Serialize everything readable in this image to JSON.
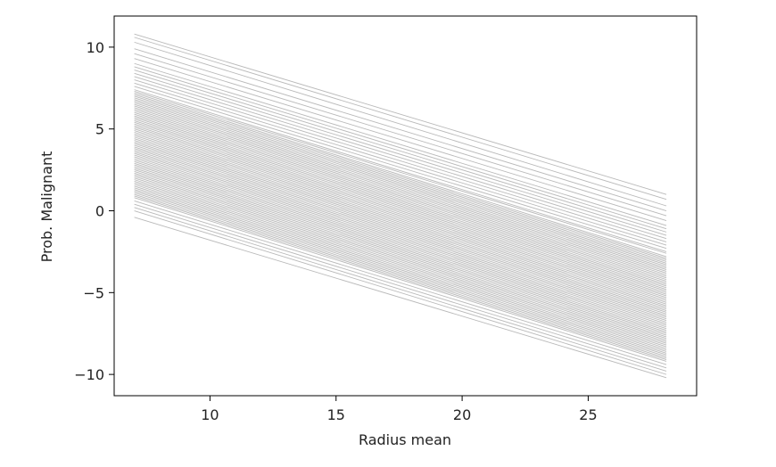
{
  "chart_data": {
    "type": "line",
    "title": "",
    "xlabel": "Radius mean",
    "ylabel": "Prob. Malignant",
    "xlim": [
      6.2,
      29.3
    ],
    "ylim": [
      -11.3,
      11.9
    ],
    "x_range": [
      7.0,
      28.1
    ],
    "x_ticks": [
      10,
      15,
      20,
      25
    ],
    "x_tick_labels": [
      "10",
      "15",
      "20",
      "25"
    ],
    "y_ticks": [
      -10,
      -5,
      0,
      5,
      10
    ],
    "y_tick_labels": [
      "−10",
      "−5",
      "0",
      "5",
      "10"
    ],
    "grid": false,
    "legend": "none",
    "line_color": "#808080",
    "slope_approx": -0.49,
    "series_intercepts_at_x_start": [
      10.8,
      10.6,
      10.3,
      9.9,
      9.6,
      9.3,
      9.0,
      8.8,
      8.6,
      8.4,
      8.2,
      8.0,
      7.8,
      7.6,
      7.4,
      7.3,
      7.2,
      7.1,
      7.0,
      6.9,
      6.8,
      6.7,
      6.6,
      6.5,
      6.4,
      6.3,
      6.2,
      6.1,
      6.0,
      5.9,
      5.8,
      5.7,
      5.6,
      5.5,
      5.4,
      5.3,
      5.2,
      5.1,
      5.0,
      4.9,
      4.8,
      4.7,
      4.6,
      4.5,
      4.4,
      4.3,
      4.2,
      4.1,
      4.0,
      3.9,
      3.8,
      3.7,
      3.6,
      3.5,
      3.4,
      3.3,
      3.2,
      3.1,
      3.0,
      2.9,
      2.8,
      2.7,
      2.6,
      2.5,
      2.4,
      2.3,
      2.2,
      2.1,
      2.0,
      1.9,
      1.8,
      1.7,
      1.6,
      1.5,
      1.4,
      1.3,
      1.2,
      1.1,
      1.0,
      0.9,
      0.8,
      0.6,
      0.4,
      0.2,
      0.0,
      -0.4
    ],
    "series_end_at_x_end": [
      1.0,
      0.7,
      0.3,
      0.0,
      -0.3,
      -0.6,
      -0.9,
      -1.1,
      -1.3,
      -1.5,
      -1.7,
      -1.9,
      -2.1,
      -2.3,
      -2.5,
      -2.6,
      -2.8,
      -2.9,
      -3.0,
      -3.1,
      -3.2,
      -3.3,
      -3.4,
      -3.5,
      -3.6,
      -3.7,
      -3.8,
      -3.9,
      -4.0,
      -4.1,
      -4.2,
      -4.3,
      -4.4,
      -4.5,
      -4.6,
      -4.7,
      -4.8,
      -4.9,
      -5.0,
      -5.1,
      -5.2,
      -5.3,
      -5.4,
      -5.5,
      -5.6,
      -5.7,
      -5.8,
      -5.9,
      -6.0,
      -6.1,
      -6.2,
      -6.3,
      -6.4,
      -6.5,
      -6.6,
      -6.7,
      -6.8,
      -6.9,
      -7.0,
      -7.1,
      -7.2,
      -7.3,
      -7.4,
      -7.5,
      -7.6,
      -7.7,
      -7.8,
      -7.9,
      -8.0,
      -8.1,
      -8.2,
      -8.3,
      -8.4,
      -8.5,
      -8.6,
      -8.7,
      -8.8,
      -8.9,
      -9.0,
      -9.1,
      -9.2,
      -9.4,
      -9.6,
      -9.8,
      -10.0,
      -10.2
    ]
  }
}
